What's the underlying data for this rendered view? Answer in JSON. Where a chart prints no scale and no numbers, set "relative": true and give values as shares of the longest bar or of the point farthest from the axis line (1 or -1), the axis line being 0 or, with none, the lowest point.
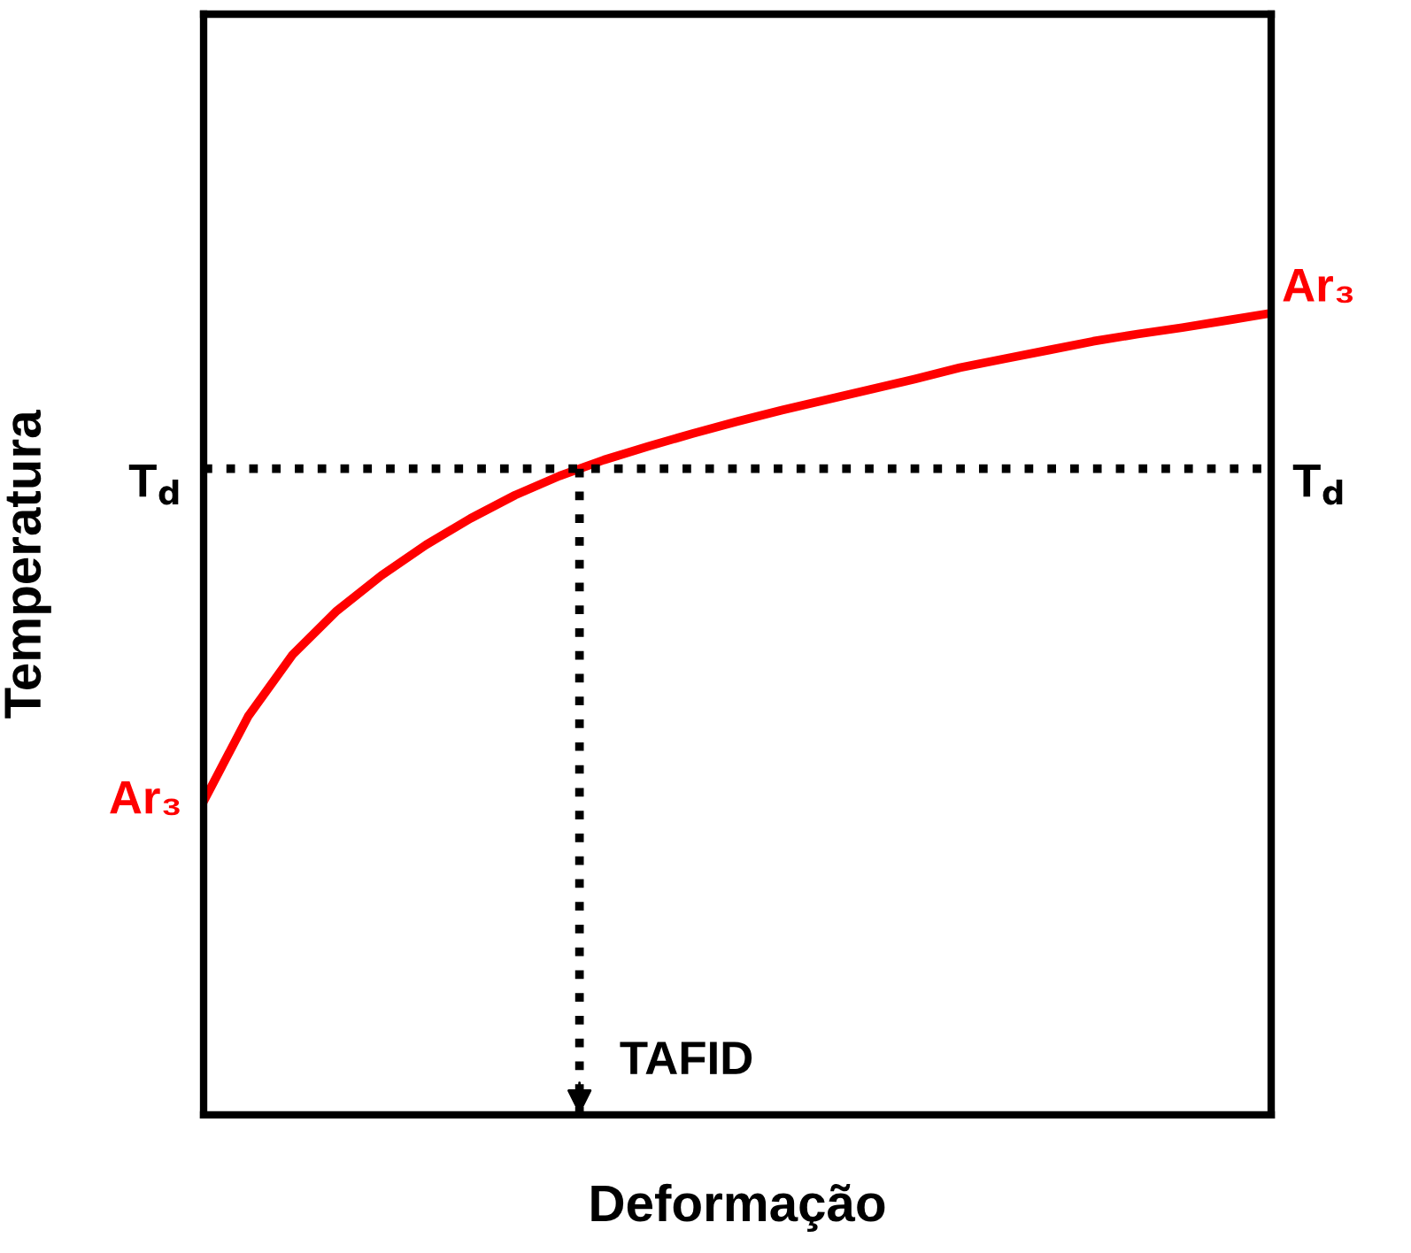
{
  "chart_data": {
    "type": "line",
    "relative": true,
    "xlabel": "Deformação",
    "ylabel": "Temperatura",
    "categories": [
      null,
      null,
      null,
      null,
      null,
      null,
      null,
      null,
      null,
      null,
      null,
      null,
      null,
      null,
      null,
      null,
      null,
      null,
      null,
      null,
      null,
      null,
      null,
      null,
      null
    ],
    "series": [
      {
        "name": "Ar₃",
        "color": "#ff0000",
        "values": [
          0.391,
          0.497,
          0.574,
          0.629,
          0.673,
          0.711,
          0.744,
          0.773,
          0.797,
          0.817,
          0.834,
          0.85,
          0.865,
          0.879,
          0.892,
          0.905,
          0.918,
          0.932,
          0.943,
          0.954,
          0.965,
          0.974,
          0.982,
          0.991,
          1.0
        ]
      }
    ],
    "ref_lines": [
      {
        "axis": "y",
        "value": 0.806,
        "label": "T$_{d}$",
        "color": "#000000",
        "line_style": "dotted"
      }
    ],
    "annotations": [
      "TAFID"
    ],
    "grid": false,
    "legend": false,
    "tick_labels": false,
    "marker": "none",
    "line_style": "solid"
  }
}
